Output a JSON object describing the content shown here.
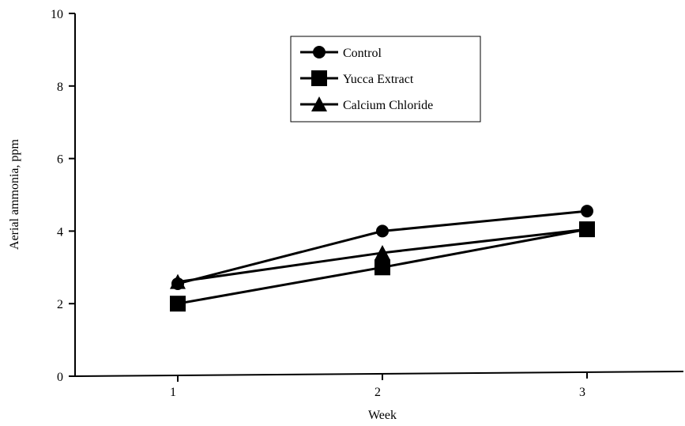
{
  "chart_data": {
    "type": "line",
    "title": "",
    "xlabel": "Week",
    "ylabel": "Aerial ammonia, ppm",
    "categories": [
      "1",
      "2",
      "3"
    ],
    "ylim": [
      0,
      10
    ],
    "yticks": [
      "0",
      "2",
      "4",
      "6",
      "8",
      "10"
    ],
    "grid": false,
    "legend_position": "top-center",
    "series": [
      {
        "name": "Control",
        "marker": "circle",
        "values": [
          2.55,
          4.0,
          4.55
        ]
      },
      {
        "name": "Yucca Extract",
        "marker": "square",
        "values": [
          2.0,
          3.0,
          4.05
        ]
      },
      {
        "name": "Calcium Chloride",
        "marker": "triangle",
        "values": [
          2.6,
          3.4,
          4.05
        ]
      }
    ],
    "colors": {
      "line": "#000000",
      "marker": "#000000"
    }
  }
}
